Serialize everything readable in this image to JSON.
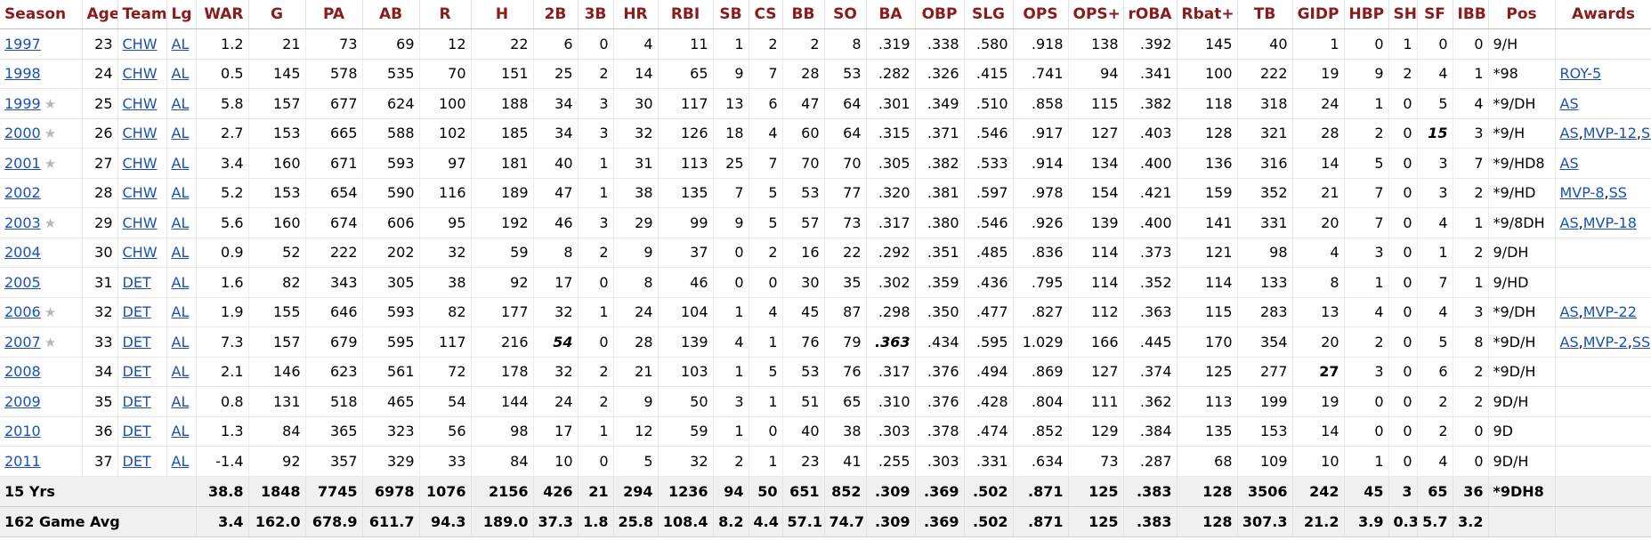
{
  "columns": [
    "Season",
    "Age",
    "Team",
    "Lg",
    "WAR",
    "G",
    "PA",
    "AB",
    "R",
    "H",
    "2B",
    "3B",
    "HR",
    "RBI",
    "SB",
    "CS",
    "BB",
    "SO",
    "BA",
    "OBP",
    "SLG",
    "OPS",
    "OPS+",
    "rOBA",
    "Rbat+",
    "TB",
    "GIDP",
    "HBP",
    "SH",
    "SF",
    "IBB",
    "Pos",
    "Awards"
  ],
  "star_glyph": "★",
  "award_separator": ",",
  "rows": [
    {
      "season": "1997",
      "star": false,
      "age": "23",
      "team": "CHW",
      "lg": "AL",
      "war": "1.2",
      "g": "21",
      "pa": "73",
      "ab": "69",
      "r": "12",
      "h": "22",
      "b2": "6",
      "b3": "0",
      "hr": "4",
      "rbi": "11",
      "sb": "1",
      "cs": "2",
      "bb": "2",
      "so": "8",
      "ba": ".319",
      "obp": ".338",
      "slg": ".580",
      "ops": ".918",
      "opsp": "138",
      "roba": ".392",
      "rbatp": "145",
      "tb": "40",
      "gidp": "1",
      "hbp": "0",
      "sh": "1",
      "sf": "0",
      "ibb": "0",
      "pos": "9/H",
      "awards": []
    },
    {
      "season": "1998",
      "star": false,
      "age": "24",
      "team": "CHW",
      "lg": "AL",
      "war": "0.5",
      "g": "145",
      "pa": "578",
      "ab": "535",
      "r": "70",
      "h": "151",
      "b2": "25",
      "b3": "2",
      "hr": "14",
      "rbi": "65",
      "sb": "9",
      "cs": "7",
      "bb": "28",
      "so": "53",
      "ba": ".282",
      "obp": ".326",
      "slg": ".415",
      "ops": ".741",
      "opsp": "94",
      "roba": ".341",
      "rbatp": "100",
      "tb": "222",
      "gidp": "19",
      "hbp": "9",
      "sh": "2",
      "sf": "4",
      "ibb": "1",
      "pos": "*98",
      "awards": [
        "ROY-5"
      ]
    },
    {
      "season": "1999",
      "star": true,
      "age": "25",
      "team": "CHW",
      "lg": "AL",
      "war": "5.8",
      "g": "157",
      "pa": "677",
      "ab": "624",
      "r": "100",
      "h": "188",
      "b2": "34",
      "b3": "3",
      "hr": "30",
      "rbi": "117",
      "sb": "13",
      "cs": "6",
      "bb": "47",
      "so": "64",
      "ba": ".301",
      "obp": ".349",
      "slg": ".510",
      "ops": ".858",
      "opsp": "115",
      "roba": ".382",
      "rbatp": "118",
      "tb": "318",
      "gidp": "24",
      "hbp": "1",
      "sh": "0",
      "sf": "5",
      "ibb": "4",
      "pos": "*9/DH",
      "awards": [
        "AS"
      ]
    },
    {
      "season": "2000",
      "star": true,
      "age": "26",
      "team": "CHW",
      "lg": "AL",
      "war": "2.7",
      "g": "153",
      "pa": "665",
      "ab": "588",
      "r": "102",
      "h": "185",
      "b2": "34",
      "b3": "3",
      "hr": "32",
      "rbi": "126",
      "sb": "18",
      "cs": "4",
      "bb": "60",
      "so": "64",
      "ba": ".315",
      "obp": ".371",
      "slg": ".546",
      "ops": ".917",
      "opsp": "127",
      "roba": ".403",
      "rbatp": "128",
      "tb": "321",
      "gidp": "28",
      "hbp": "2",
      "sh": "0",
      "sf": "15",
      "ibb": "3",
      "pos": "*9/H",
      "awards": [
        "AS",
        "MVP-12",
        "SS"
      ],
      "lead": [
        "sf"
      ]
    },
    {
      "season": "2001",
      "star": true,
      "age": "27",
      "team": "CHW",
      "lg": "AL",
      "war": "3.4",
      "g": "160",
      "pa": "671",
      "ab": "593",
      "r": "97",
      "h": "181",
      "b2": "40",
      "b3": "1",
      "hr": "31",
      "rbi": "113",
      "sb": "25",
      "cs": "7",
      "bb": "70",
      "so": "70",
      "ba": ".305",
      "obp": ".382",
      "slg": ".533",
      "ops": ".914",
      "opsp": "134",
      "roba": ".400",
      "rbatp": "136",
      "tb": "316",
      "gidp": "14",
      "hbp": "5",
      "sh": "0",
      "sf": "3",
      "ibb": "7",
      "pos": "*9/HD8",
      "awards": [
        "AS"
      ]
    },
    {
      "season": "2002",
      "star": false,
      "age": "28",
      "team": "CHW",
      "lg": "AL",
      "war": "5.2",
      "g": "153",
      "pa": "654",
      "ab": "590",
      "r": "116",
      "h": "189",
      "b2": "47",
      "b3": "1",
      "hr": "38",
      "rbi": "135",
      "sb": "7",
      "cs": "5",
      "bb": "53",
      "so": "77",
      "ba": ".320",
      "obp": ".381",
      "slg": ".597",
      "ops": ".978",
      "opsp": "154",
      "roba": ".421",
      "rbatp": "159",
      "tb": "352",
      "gidp": "21",
      "hbp": "7",
      "sh": "0",
      "sf": "3",
      "ibb": "2",
      "pos": "*9/HD",
      "awards": [
        "MVP-8",
        "SS"
      ]
    },
    {
      "season": "2003",
      "star": true,
      "age": "29",
      "team": "CHW",
      "lg": "AL",
      "war": "5.6",
      "g": "160",
      "pa": "674",
      "ab": "606",
      "r": "95",
      "h": "192",
      "b2": "46",
      "b3": "3",
      "hr": "29",
      "rbi": "99",
      "sb": "9",
      "cs": "5",
      "bb": "57",
      "so": "73",
      "ba": ".317",
      "obp": ".380",
      "slg": ".546",
      "ops": ".926",
      "opsp": "139",
      "roba": ".400",
      "rbatp": "141",
      "tb": "331",
      "gidp": "20",
      "hbp": "7",
      "sh": "0",
      "sf": "4",
      "ibb": "1",
      "pos": "*9/8DH",
      "awards": [
        "AS",
        "MVP-18"
      ]
    },
    {
      "season": "2004",
      "star": false,
      "age": "30",
      "team": "CHW",
      "lg": "AL",
      "war": "0.9",
      "g": "52",
      "pa": "222",
      "ab": "202",
      "r": "32",
      "h": "59",
      "b2": "8",
      "b3": "2",
      "hr": "9",
      "rbi": "37",
      "sb": "0",
      "cs": "2",
      "bb": "16",
      "so": "22",
      "ba": ".292",
      "obp": ".351",
      "slg": ".485",
      "ops": ".836",
      "opsp": "114",
      "roba": ".373",
      "rbatp": "121",
      "tb": "98",
      "gidp": "4",
      "hbp": "3",
      "sh": "0",
      "sf": "1",
      "ibb": "2",
      "pos": "9/DH",
      "awards": []
    },
    {
      "season": "2005",
      "star": false,
      "age": "31",
      "team": "DET",
      "lg": "AL",
      "war": "1.6",
      "g": "82",
      "pa": "343",
      "ab": "305",
      "r": "38",
      "h": "92",
      "b2": "17",
      "b3": "0",
      "hr": "8",
      "rbi": "46",
      "sb": "0",
      "cs": "0",
      "bb": "30",
      "so": "35",
      "ba": ".302",
      "obp": ".359",
      "slg": ".436",
      "ops": ".795",
      "opsp": "114",
      "roba": ".352",
      "rbatp": "114",
      "tb": "133",
      "gidp": "8",
      "hbp": "1",
      "sh": "0",
      "sf": "7",
      "ibb": "1",
      "pos": "9/HD",
      "awards": []
    },
    {
      "season": "2006",
      "star": true,
      "age": "32",
      "team": "DET",
      "lg": "AL",
      "war": "1.9",
      "g": "155",
      "pa": "646",
      "ab": "593",
      "r": "82",
      "h": "177",
      "b2": "32",
      "b3": "1",
      "hr": "24",
      "rbi": "104",
      "sb": "1",
      "cs": "4",
      "bb": "45",
      "so": "87",
      "ba": ".298",
      "obp": ".350",
      "slg": ".477",
      "ops": ".827",
      "opsp": "112",
      "roba": ".363",
      "rbatp": "115",
      "tb": "283",
      "gidp": "13",
      "hbp": "4",
      "sh": "0",
      "sf": "4",
      "ibb": "3",
      "pos": "*9/DH",
      "awards": [
        "AS",
        "MVP-22"
      ]
    },
    {
      "season": "2007",
      "star": true,
      "age": "33",
      "team": "DET",
      "lg": "AL",
      "war": "7.3",
      "g": "157",
      "pa": "679",
      "ab": "595",
      "r": "117",
      "h": "216",
      "b2": "54",
      "b3": "0",
      "hr": "28",
      "rbi": "139",
      "sb": "4",
      "cs": "1",
      "bb": "76",
      "so": "79",
      "ba": ".363",
      "obp": ".434",
      "slg": ".595",
      "ops": "1.029",
      "opsp": "166",
      "roba": ".445",
      "rbatp": "170",
      "tb": "354",
      "gidp": "20",
      "hbp": "2",
      "sh": "0",
      "sf": "5",
      "ibb": "8",
      "pos": "*9D/H",
      "awards": [
        "AS",
        "MVP-2",
        "SS"
      ],
      "lead": [
        "b2",
        "ba"
      ]
    },
    {
      "season": "2008",
      "star": false,
      "age": "34",
      "team": "DET",
      "lg": "AL",
      "war": "2.1",
      "g": "146",
      "pa": "623",
      "ab": "561",
      "r": "72",
      "h": "178",
      "b2": "32",
      "b3": "2",
      "hr": "21",
      "rbi": "103",
      "sb": "1",
      "cs": "5",
      "bb": "53",
      "so": "76",
      "ba": ".317",
      "obp": ".376",
      "slg": ".494",
      "ops": ".869",
      "opsp": "127",
      "roba": ".374",
      "rbatp": "125",
      "tb": "277",
      "gidp": "27",
      "hbp": "3",
      "sh": "0",
      "sf": "6",
      "ibb": "2",
      "pos": "*9D/H",
      "awards": [],
      "boldcells": [
        "gidp"
      ]
    },
    {
      "season": "2009",
      "star": false,
      "age": "35",
      "team": "DET",
      "lg": "AL",
      "war": "0.8",
      "g": "131",
      "pa": "518",
      "ab": "465",
      "r": "54",
      "h": "144",
      "b2": "24",
      "b3": "2",
      "hr": "9",
      "rbi": "50",
      "sb": "3",
      "cs": "1",
      "bb": "51",
      "so": "65",
      "ba": ".310",
      "obp": ".376",
      "slg": ".428",
      "ops": ".804",
      "opsp": "111",
      "roba": ".362",
      "rbatp": "113",
      "tb": "199",
      "gidp": "19",
      "hbp": "0",
      "sh": "0",
      "sf": "2",
      "ibb": "2",
      "pos": "9D/H",
      "awards": []
    },
    {
      "season": "2010",
      "star": false,
      "age": "36",
      "team": "DET",
      "lg": "AL",
      "war": "1.3",
      "g": "84",
      "pa": "365",
      "ab": "323",
      "r": "56",
      "h": "98",
      "b2": "17",
      "b3": "1",
      "hr": "12",
      "rbi": "59",
      "sb": "1",
      "cs": "0",
      "bb": "40",
      "so": "38",
      "ba": ".303",
      "obp": ".378",
      "slg": ".474",
      "ops": ".852",
      "opsp": "129",
      "roba": ".384",
      "rbatp": "135",
      "tb": "153",
      "gidp": "14",
      "hbp": "0",
      "sh": "0",
      "sf": "2",
      "ibb": "0",
      "pos": "9D",
      "awards": []
    },
    {
      "season": "2011",
      "star": false,
      "age": "37",
      "team": "DET",
      "lg": "AL",
      "war": "-1.4",
      "g": "92",
      "pa": "357",
      "ab": "329",
      "r": "33",
      "h": "84",
      "b2": "10",
      "b3": "0",
      "hr": "5",
      "rbi": "32",
      "sb": "2",
      "cs": "1",
      "bb": "23",
      "so": "41",
      "ba": ".255",
      "obp": ".303",
      "slg": ".331",
      "ops": ".634",
      "opsp": "73",
      "roba": ".287",
      "rbatp": "68",
      "tb": "109",
      "gidp": "10",
      "hbp": "1",
      "sh": "0",
      "sf": "4",
      "ibb": "0",
      "pos": "9D/H",
      "awards": []
    }
  ],
  "totals": [
    {
      "label": "15 Yrs",
      "war": "38.8",
      "g": "1848",
      "pa": "7745",
      "ab": "6978",
      "r": "1076",
      "h": "2156",
      "b2": "426",
      "b3": "21",
      "hr": "294",
      "rbi": "1236",
      "sb": "94",
      "cs": "50",
      "bb": "651",
      "so": "852",
      "ba": ".309",
      "obp": ".369",
      "slg": ".502",
      "ops": ".871",
      "opsp": "125",
      "roba": ".383",
      "rbatp": "128",
      "tb": "3506",
      "gidp": "242",
      "hbp": "45",
      "sh": "3",
      "sf": "65",
      "ibb": "36",
      "pos": "*9DH8"
    },
    {
      "label": "162 Game Avg",
      "war": "3.4",
      "g": "162.0",
      "pa": "678.9",
      "ab": "611.7",
      "r": "94.3",
      "h": "189.0",
      "b2": "37.3",
      "b3": "1.8",
      "hr": "25.8",
      "rbi": "108.4",
      "sb": "8.2",
      "cs": "4.4",
      "bb": "57.1",
      "so": "74.7",
      "ba": ".309",
      "obp": ".369",
      "slg": ".502",
      "ops": ".871",
      "opsp": "125",
      "roba": ".383",
      "rbatp": "128",
      "tb": "307.3",
      "gidp": "21.2",
      "hbp": "3.9",
      "sh": "0.3",
      "sf": "5.7",
      "ibb": "3.2",
      "pos": ""
    }
  ]
}
